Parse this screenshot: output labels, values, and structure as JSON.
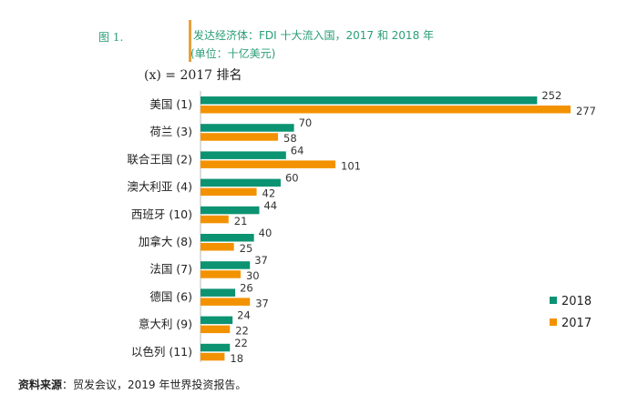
{
  "figure_label": "图 1.",
  "title": "发达经济体：FDI 十大流入国，2017 和 2018 年",
  "unit": "(单位：十亿美元)",
  "note": "(x) = 2017 排名",
  "source_label": "资料来源",
  "source_text": "：贸发会议，2019 年世界投资报告。",
  "chart_data": {
    "type": "bar",
    "orientation": "horizontal",
    "categories": [
      "美国 (1)",
      "荷兰 (3)",
      "联合王国 (2)",
      "澳大利亚 (4)",
      "西班牙 (10)",
      "加拿大 (8)",
      "法国 (7)",
      "德国 (6)",
      "意大利 (9)",
      "以色列 (11)"
    ],
    "series": [
      {
        "name": "2018",
        "color": "#0b9372",
        "values": [
          252,
          70,
          64,
          60,
          44,
          40,
          37,
          26,
          24,
          22
        ]
      },
      {
        "name": "2017",
        "color": "#f39200",
        "values": [
          277,
          58,
          101,
          42,
          21,
          25,
          30,
          37,
          22,
          18
        ]
      }
    ],
    "xlim": [
      0,
      277
    ],
    "grid": false,
    "legend": "bottom-right",
    "data_labels": true
  }
}
